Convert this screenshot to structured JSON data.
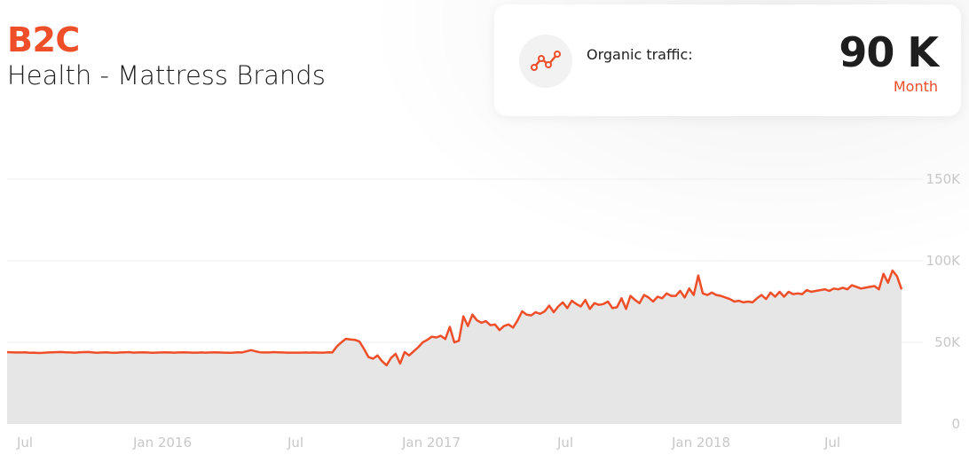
{
  "header": {
    "brand": "B2C",
    "subtitle": "Health - Mattress Brands"
  },
  "stat_card": {
    "icon": "line-chart-icon",
    "label": "Organic traffic:",
    "value": "90 K",
    "unit": "Month"
  },
  "colors": {
    "accent": "#ee4e28",
    "area_fill": "#e6e6e6",
    "grid": "#eeeeee",
    "tick_text": "#c8c8c8"
  },
  "chart_data": {
    "type": "area",
    "x_ticks": [
      "Jul",
      "Jan 2016",
      "Jul",
      "Jan 2017",
      "Jul",
      "Jan 2018",
      "Jul"
    ],
    "y_ticks": [
      "0",
      "50K",
      "100K",
      "150K"
    ],
    "ylim": [
      0,
      150000
    ],
    "x_range": [
      "2015-05",
      "2018-10"
    ],
    "grid": true,
    "series": [
      {
        "values": [
          44000,
          43900,
          43800,
          43800,
          43900,
          43600,
          43700,
          43500,
          43600,
          43800,
          43900,
          44000,
          44100,
          43900,
          43800,
          43700,
          43900,
          44000,
          44100,
          43800,
          43600,
          43800,
          43900,
          43700,
          43600,
          43800,
          43900,
          44000,
          43700,
          43800,
          43900,
          43800,
          43600,
          43700,
          43800,
          43900,
          43800,
          43700,
          43800,
          43900,
          43800,
          43700,
          43700,
          43800,
          43700,
          43800,
          43900,
          43800,
          43700,
          43600,
          43700,
          43900,
          43800,
          44500,
          45200,
          44500,
          43900,
          43800,
          43800,
          44000,
          43900,
          43800,
          43700,
          43700,
          43700,
          43700,
          43800,
          43700,
          43800,
          43700,
          43700,
          43900,
          43800,
          47500,
          50000,
          52200,
          51800,
          51500,
          50500,
          46000,
          41000,
          40000,
          42000,
          38500,
          36000,
          40500,
          43000,
          37000,
          44000,
          42000,
          44500,
          47000,
          50000,
          51500,
          53500,
          53000,
          54000,
          52000,
          59500,
          50000,
          51000,
          66000,
          60000,
          67000,
          63500,
          62000,
          63000,
          60500,
          61000,
          57500,
          60000,
          61000,
          59000,
          63500,
          69000,
          67000,
          66500,
          68500,
          67500,
          69000,
          72500,
          68500,
          72000,
          74500,
          71000,
          75500,
          73500,
          72000,
          76000,
          70500,
          74000,
          73000,
          73500,
          75000,
          71000,
          71500,
          77000,
          70500,
          78500,
          76000,
          74000,
          79000,
          77500,
          75000,
          78000,
          77000,
          80000,
          78500,
          78500,
          81500,
          77500,
          83000,
          79000,
          91000,
          80000,
          79000,
          80500,
          79000,
          78500,
          77500,
          76500,
          75000,
          75500,
          74500,
          75000,
          74500,
          77000,
          79000,
          76500,
          80500,
          78000,
          81000,
          78000,
          81000,
          79500,
          80000,
          79500,
          82000,
          81000,
          81500,
          82000,
          82500,
          81500,
          83000,
          82500,
          83500,
          82500,
          85000,
          84000,
          83000,
          83500,
          84000,
          84500,
          82500,
          92000,
          86500,
          94000,
          90500,
          82500
        ]
      }
    ]
  }
}
